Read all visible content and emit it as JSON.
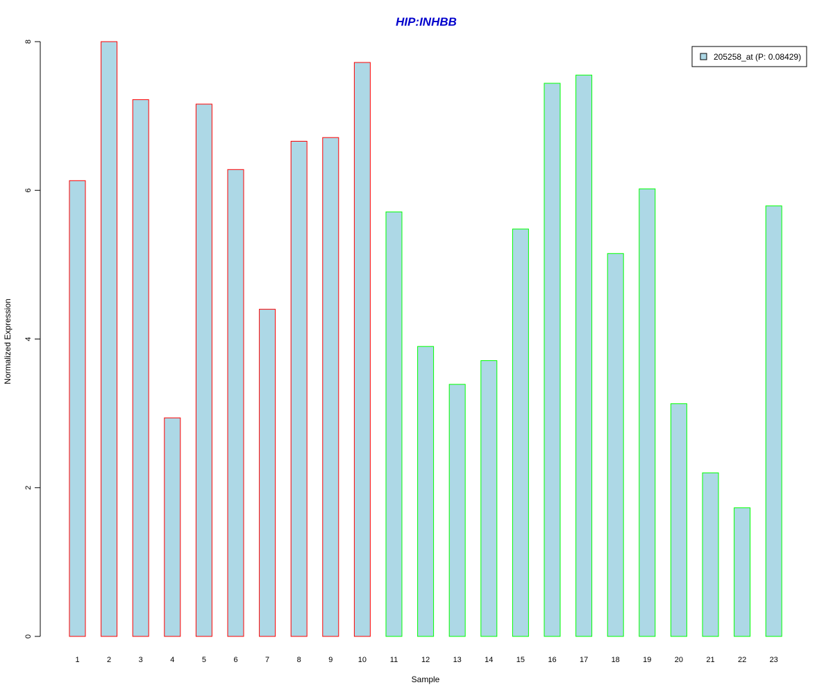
{
  "chart_data": {
    "type": "bar",
    "title": "HIP:INHBB",
    "xlabel": "Sample",
    "ylabel": "Normalized Expression",
    "categories": [
      "1",
      "2",
      "3",
      "4",
      "5",
      "6",
      "7",
      "8",
      "9",
      "10",
      "11",
      "12",
      "13",
      "14",
      "15",
      "16",
      "17",
      "18",
      "19",
      "20",
      "21",
      "22",
      "23"
    ],
    "values": [
      6.13,
      8.0,
      7.22,
      2.94,
      7.16,
      6.28,
      4.4,
      6.66,
      6.71,
      7.72,
      5.71,
      3.9,
      3.39,
      3.71,
      5.48,
      7.44,
      7.55,
      5.15,
      6.02,
      3.13,
      2.2,
      1.73,
      5.79
    ],
    "ylim": [
      0,
      8
    ],
    "yticks": [
      0,
      2,
      4,
      6,
      8
    ],
    "grid": false,
    "series": [
      {
        "name": "205258_at (P: 0.08429)"
      }
    ],
    "legend_position": "top-right",
    "colors": {
      "bar_fill": "#add8e6",
      "group_a_border": "#ff0000",
      "group_b_border": "#00ff00",
      "title": "#0000cc"
    },
    "group_a_count": 10
  }
}
